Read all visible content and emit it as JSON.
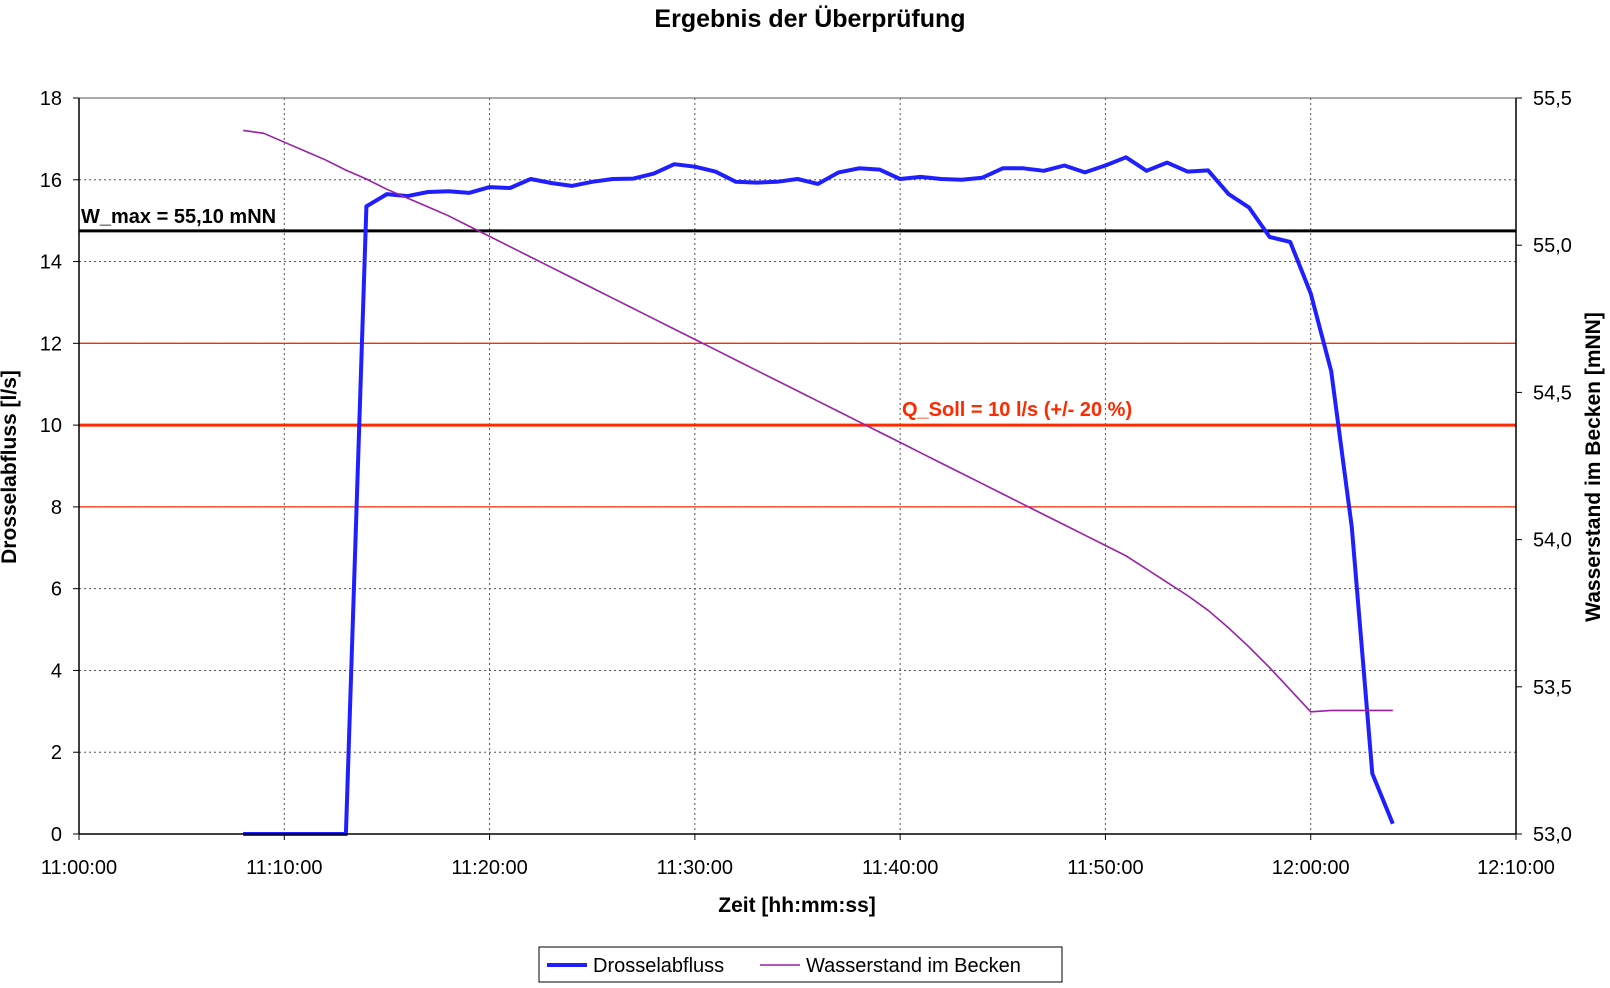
{
  "chart_data": {
    "type": "line",
    "title": "Ergebnis der Überprüfung",
    "xlabel": "Zeit [hh:mm:ss]",
    "ylabel_left": "Drosselabfluss [l/s]",
    "ylabel_right": "Wasserstand im Becken [mNN]",
    "x_ticks": [
      "11:00:00",
      "11:10:00",
      "11:20:00",
      "11:30:00",
      "11:40:00",
      "11:50:00",
      "12:00:00",
      "12:10:00"
    ],
    "xlim": [
      "11:00:00",
      "12:10:00"
    ],
    "y_left_ticks": [
      "0",
      "2",
      "4",
      "6",
      "8",
      "10",
      "12",
      "14",
      "16",
      "18"
    ],
    "ylim_left": [
      0,
      18
    ],
    "y_right_ticks": [
      "53,0",
      "53,5",
      "54,0",
      "54,5",
      "55,0",
      "55,5"
    ],
    "ylim_right": [
      53.0,
      55.5
    ],
    "grid": true,
    "legend_position": "bottom",
    "series": [
      {
        "name": "Drosselabfluss",
        "axis": "left",
        "color": "#1f1fff",
        "x": [
          "11:08:00",
          "11:09:00",
          "11:10:00",
          "11:11:00",
          "11:12:00",
          "11:13:00",
          "11:14:00",
          "11:15:00",
          "11:16:00",
          "11:17:00",
          "11:18:00",
          "11:19:00",
          "11:20:00",
          "11:21:00",
          "11:22:00",
          "11:23:00",
          "11:24:00",
          "11:25:00",
          "11:26:00",
          "11:27:00",
          "11:28:00",
          "11:29:00",
          "11:30:00",
          "11:31:00",
          "11:32:00",
          "11:33:00",
          "11:34:00",
          "11:35:00",
          "11:36:00",
          "11:37:00",
          "11:38:00",
          "11:39:00",
          "11:40:00",
          "11:41:00",
          "11:42:00",
          "11:43:00",
          "11:44:00",
          "11:45:00",
          "11:46:00",
          "11:47:00",
          "11:48:00",
          "11:49:00",
          "11:50:00",
          "11:51:00",
          "11:52:00",
          "11:53:00",
          "11:54:00",
          "11:55:00",
          "11:56:00",
          "11:57:00",
          "11:58:00",
          "11:59:00",
          "12:00:00",
          "12:01:00",
          "12:02:00",
          "12:03:00",
          "12:04:00"
        ],
        "values": [
          0,
          0,
          0,
          0,
          0,
          0,
          15.35,
          15.65,
          15.6,
          15.7,
          15.72,
          15.68,
          15.82,
          15.8,
          16.02,
          15.92,
          15.85,
          15.95,
          16.02,
          16.03,
          16.15,
          16.38,
          16.32,
          16.2,
          15.95,
          15.93,
          15.95,
          16.02,
          15.9,
          16.18,
          16.28,
          16.25,
          16.02,
          16.07,
          16.02,
          16.0,
          16.05,
          16.28,
          16.28,
          16.22,
          16.35,
          16.18,
          16.35,
          16.55,
          16.22,
          16.42,
          16.2,
          16.23,
          15.65,
          15.32,
          14.6,
          14.48,
          13.22,
          11.32,
          7.5,
          1.48,
          0.25
        ]
      },
      {
        "name": "Wasserstand im Becken",
        "axis": "right",
        "color": "#9b1fa8",
        "x": [
          "11:08:00",
          "11:09:00",
          "11:10:00",
          "11:11:00",
          "11:12:00",
          "11:13:00",
          "11:14:00",
          "11:15:00",
          "11:16:00",
          "11:17:00",
          "11:18:00",
          "11:19:00",
          "11:20:00",
          "11:21:00",
          "11:22:00",
          "11:23:00",
          "11:24:00",
          "11:25:00",
          "11:26:00",
          "11:27:00",
          "11:28:00",
          "11:29:00",
          "11:30:00",
          "11:31:00",
          "11:32:00",
          "11:33:00",
          "11:34:00",
          "11:35:00",
          "11:36:00",
          "11:37:00",
          "11:38:00",
          "11:39:00",
          "11:40:00",
          "11:41:00",
          "11:42:00",
          "11:43:00",
          "11:44:00",
          "11:45:00",
          "11:46:00",
          "11:47:00",
          "11:48:00",
          "11:49:00",
          "11:50:00",
          "11:51:00",
          "11:52:00",
          "11:53:00",
          "11:54:00",
          "11:55:00",
          "11:56:00",
          "11:57:00",
          "11:58:00",
          "11:59:00",
          "12:00:00",
          "12:01:00",
          "12:02:00",
          "12:03:00",
          "12:04:00"
        ],
        "values": [
          55.39,
          55.38,
          55.35,
          55.32,
          55.29,
          55.255,
          55.225,
          55.19,
          55.16,
          55.13,
          55.1,
          55.065,
          55.03,
          54.995,
          54.96,
          54.925,
          54.89,
          54.855,
          54.82,
          54.785,
          54.75,
          54.715,
          54.68,
          54.645,
          54.61,
          54.575,
          54.54,
          54.505,
          54.47,
          54.435,
          54.4,
          54.365,
          54.33,
          54.295,
          54.26,
          54.225,
          54.19,
          54.155,
          54.12,
          54.085,
          54.05,
          54.015,
          53.98,
          53.945,
          53.9,
          53.855,
          53.81,
          53.76,
          53.7,
          53.635,
          53.565,
          53.49,
          53.415,
          53.42,
          53.42,
          53.42,
          53.42
        ]
      }
    ],
    "reference_lines": [
      {
        "label": "W_max = 55,10 mNN",
        "axis": "left",
        "value": 14.75,
        "color": "#000000",
        "style": "bold"
      },
      {
        "label": "Q_Soll = 10 l/s (+/- 20 %)",
        "axis": "left",
        "value": 10,
        "color": "#ff2a00",
        "style": "bold"
      },
      {
        "label": "",
        "axis": "left",
        "value": 12,
        "color": "#ff2a00",
        "style": "thin"
      },
      {
        "label": "",
        "axis": "left",
        "value": 8,
        "color": "#ff2a00",
        "style": "thin"
      }
    ]
  }
}
